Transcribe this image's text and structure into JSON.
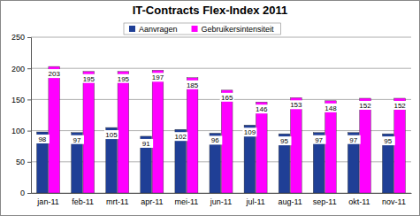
{
  "chart_data": {
    "type": "bar",
    "title": "IT-Contracts Flex-Index 2011",
    "categories": [
      "jan-11",
      "feb-11",
      "mrt-11",
      "apr-11",
      "mei-11",
      "jun-11",
      "jul-11",
      "aug-11",
      "sep-11",
      "okt-11",
      "nov-11"
    ],
    "series": [
      {
        "name": "Aanvragen",
        "color": "#1f3f96",
        "values": [
          98,
          97,
          105,
          91,
          102,
          96,
          109,
          95,
          97,
          97,
          95
        ]
      },
      {
        "name": "Gebruikersintensiteit",
        "color": "#ff00ff",
        "values": [
          203,
          195,
          195,
          197,
          185,
          165,
          146,
          153,
          148,
          152,
          152
        ]
      }
    ],
    "ylim": [
      0,
      250
    ],
    "yticks": [
      0,
      50,
      100,
      150,
      200,
      250
    ],
    "grid": true,
    "legend": "top",
    "data_labels": true
  }
}
